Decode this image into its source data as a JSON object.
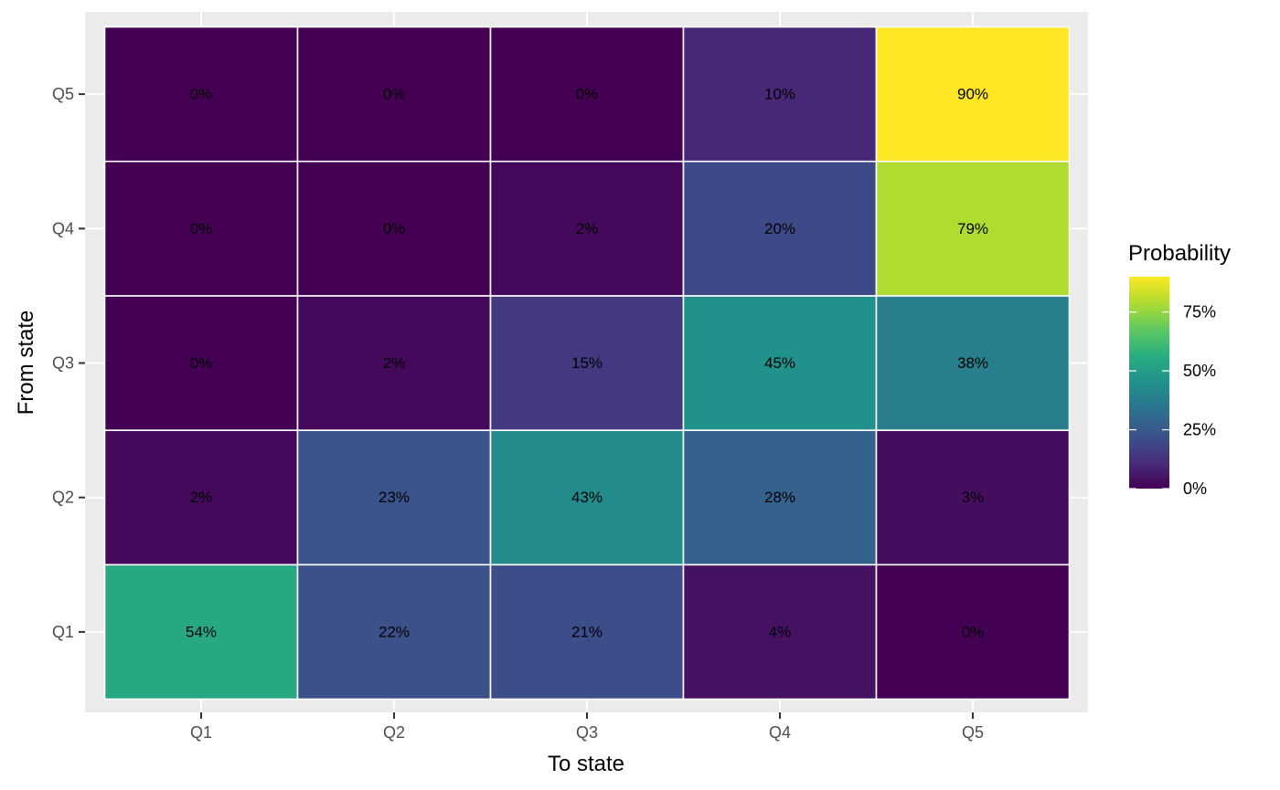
{
  "chart_data": {
    "type": "heatmap",
    "x_categories": [
      "Q1",
      "Q2",
      "Q3",
      "Q4",
      "Q5"
    ],
    "y_categories": [
      "Q1",
      "Q2",
      "Q3",
      "Q4",
      "Q5"
    ],
    "xlabel": "To state",
    "ylabel": "From state",
    "value_format": "percent",
    "values": [
      [
        54,
        22,
        21,
        4,
        0
      ],
      [
        2,
        23,
        43,
        28,
        3
      ],
      [
        0,
        2,
        15,
        45,
        38
      ],
      [
        0,
        0,
        2,
        20,
        79
      ],
      [
        0,
        0,
        0,
        10,
        90
      ]
    ],
    "cell_labels": [
      [
        "54%",
        "22%",
        "21%",
        "4%",
        "0%"
      ],
      [
        "2%",
        "23%",
        "43%",
        "28%",
        "3%"
      ],
      [
        "0%",
        "2%",
        "15%",
        "45%",
        "38%"
      ],
      [
        "0%",
        "0%",
        "2%",
        "20%",
        "79%"
      ],
      [
        "0%",
        "0%",
        "0%",
        "10%",
        "90%"
      ]
    ],
    "legend": {
      "title": "Probability",
      "placement": "right",
      "range": [
        0,
        90
      ],
      "ticks": [
        0,
        25,
        50,
        75
      ],
      "tick_labels": [
        "0%",
        "25%",
        "50%",
        "75%"
      ],
      "colormap": "viridis"
    },
    "grid": true
  }
}
